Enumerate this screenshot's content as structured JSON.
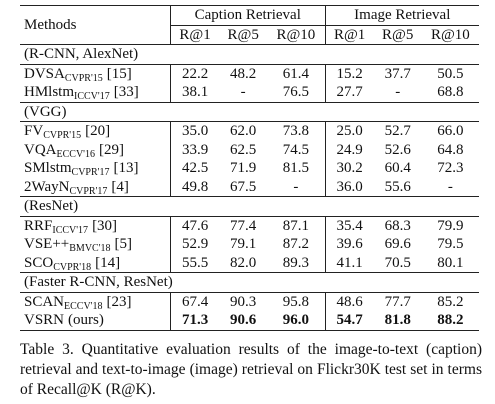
{
  "table": {
    "header": {
      "methods": "Methods",
      "groups": [
        "Caption Retrieval",
        "Image Retrieval"
      ],
      "columns": [
        "R@1",
        "R@5",
        "R@10",
        "R@1",
        "R@5",
        "R@10"
      ]
    },
    "sections": [
      {
        "label": "(R-CNN, AlexNet)",
        "rows": [
          {
            "name": "DVSA",
            "venue": "CVPR'15",
            "ref": "[15]",
            "values": [
              "22.2",
              "48.2",
              "61.4",
              "15.2",
              "37.7",
              "50.5"
            ]
          },
          {
            "name": "HMlstm",
            "venue": "ICCV'17",
            "ref": "[33]",
            "values": [
              "38.1",
              "-",
              "76.5",
              "27.7",
              "-",
              "68.8"
            ]
          }
        ]
      },
      {
        "label": "(VGG)",
        "rows": [
          {
            "name": "FV",
            "venue": "CVPR'15",
            "ref": "[20]",
            "values": [
              "35.0",
              "62.0",
              "73.8",
              "25.0",
              "52.7",
              "66.0"
            ]
          },
          {
            "name": "VQA",
            "venue": "ECCV'16",
            "ref": "[29]",
            "values": [
              "33.9",
              "62.5",
              "74.5",
              "24.9",
              "52.6",
              "64.8"
            ]
          },
          {
            "name": "SMlstm",
            "venue": "CVPR'17",
            "ref": "[13]",
            "values": [
              "42.5",
              "71.9",
              "81.5",
              "30.2",
              "60.4",
              "72.3"
            ]
          },
          {
            "name": "2WayN",
            "venue": "CVPR'17",
            "ref": "[4]",
            "values": [
              "49.8",
              "67.5",
              "-",
              "36.0",
              "55.6",
              "-"
            ]
          }
        ]
      },
      {
        "label": "(ResNet)",
        "rows": [
          {
            "name": "RRF",
            "venue": "ICCV'17",
            "ref": "[30]",
            "values": [
              "47.6",
              "77.4",
              "87.1",
              "35.4",
              "68.3",
              "79.9"
            ]
          },
          {
            "name": "VSE++",
            "venue": "BMVC'18",
            "ref": "[5]",
            "values": [
              "52.9",
              "79.1",
              "87.2",
              "39.6",
              "69.6",
              "79.5"
            ]
          },
          {
            "name": "SCO",
            "venue": "CVPR'18",
            "ref": "[14]",
            "values": [
              "55.5",
              "82.0",
              "89.3",
              "41.1",
              "70.5",
              "80.1"
            ]
          }
        ]
      },
      {
        "label": "(Faster R-CNN, ResNet)",
        "rows": [
          {
            "name": "SCAN",
            "venue": "ECCV'18",
            "ref": "[23]",
            "values": [
              "67.4",
              "90.3",
              "95.8",
              "48.6",
              "77.7",
              "85.2"
            ]
          },
          {
            "name": "VSRN",
            "ref": "(ours)",
            "bold": true,
            "values": [
              "71.3",
              "90.6",
              "96.0",
              "54.7",
              "81.8",
              "88.2"
            ]
          }
        ]
      }
    ]
  },
  "caption": "Table 3. Quantitative evaluation results of the image-to-text (caption) retrieval and text-to-image (image) retrieval on Flickr30K test set in terms of Recall@K (R@K)."
}
